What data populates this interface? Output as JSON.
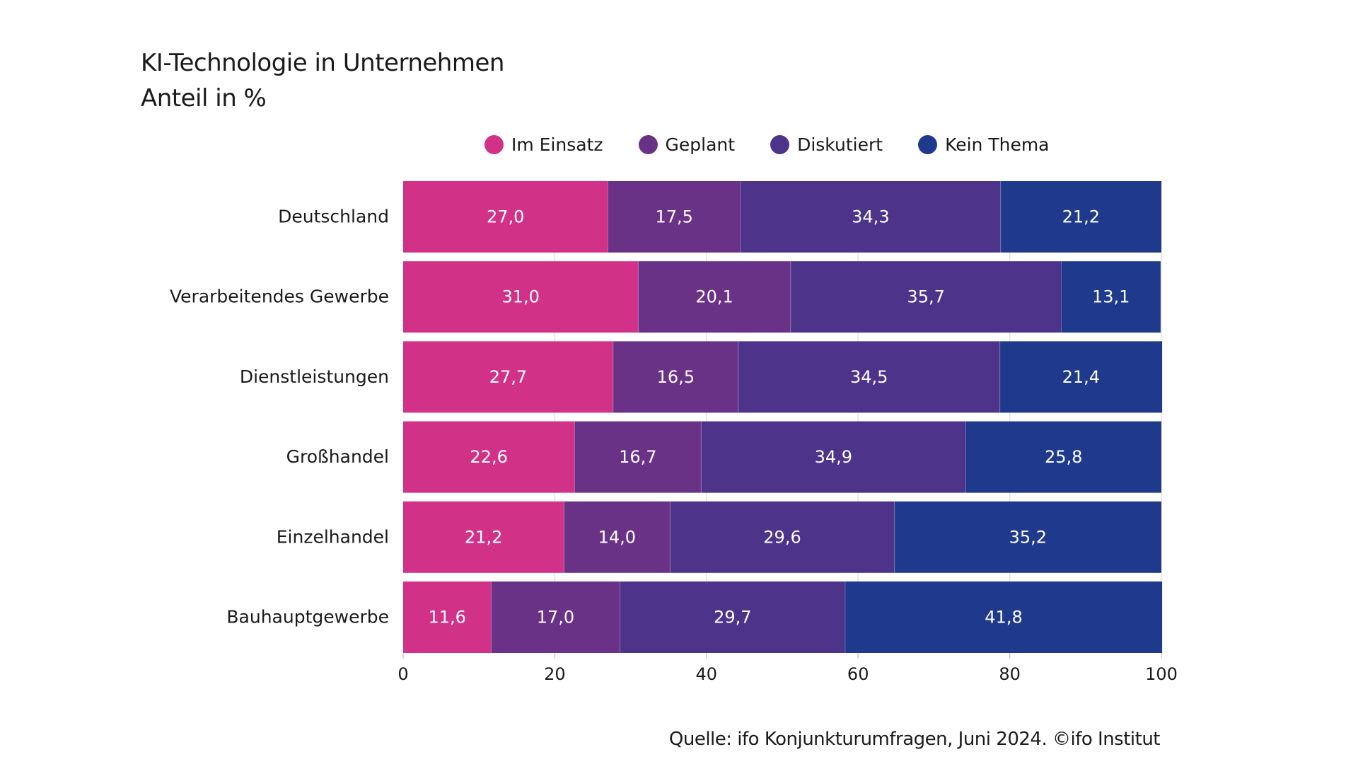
{
  "chart_data": {
    "type": "bar",
    "orientation": "horizontal-stacked",
    "title": "KI-Technologie in Unternehmen",
    "subtitle": "Anteil in %",
    "categories": [
      "Deutschland",
      "Verarbeitendes Gewerbe",
      "Dienstleistungen",
      "Großhandel",
      "Einzelhandel",
      "Bauhauptgewerbe"
    ],
    "series": [
      {
        "name": "Im Einsatz",
        "color": "#D23188",
        "values": [
          27.0,
          31.0,
          27.7,
          22.6,
          21.2,
          11.6
        ],
        "labels": [
          "27,0",
          "31,0",
          "27,7",
          "22,6",
          "21,2",
          "11,6"
        ]
      },
      {
        "name": "Geplant",
        "color": "#6A3286",
        "values": [
          17.5,
          20.1,
          16.5,
          16.7,
          14.0,
          17.0
        ],
        "labels": [
          "17,5",
          "20,1",
          "16,5",
          "16,7",
          "14,0",
          "17,0"
        ]
      },
      {
        "name": "Diskutiert",
        "color": "#4D338A",
        "values": [
          34.3,
          35.7,
          34.5,
          34.9,
          29.6,
          29.7
        ],
        "labels": [
          "34,3",
          "35,7",
          "34,5",
          "34,9",
          "29,6",
          "29,7"
        ]
      },
      {
        "name": "Kein Thema",
        "color": "#1F3A8C",
        "values": [
          21.2,
          13.1,
          21.4,
          25.8,
          35.2,
          41.8
        ],
        "labels": [
          "21,2",
          "13,1",
          "21,4",
          "25,8",
          "35,2",
          "41,8"
        ]
      }
    ],
    "xlim": [
      0,
      100
    ],
    "xticks": [
      0,
      20,
      40,
      60,
      80,
      100
    ],
    "xtick_labels": [
      "0",
      "20",
      "40",
      "60",
      "80",
      "100"
    ],
    "grid": true,
    "legend_position": "top"
  },
  "source": "Quelle: ifo Konjunkturumfragen, Juni 2024. ©ifo Institut"
}
